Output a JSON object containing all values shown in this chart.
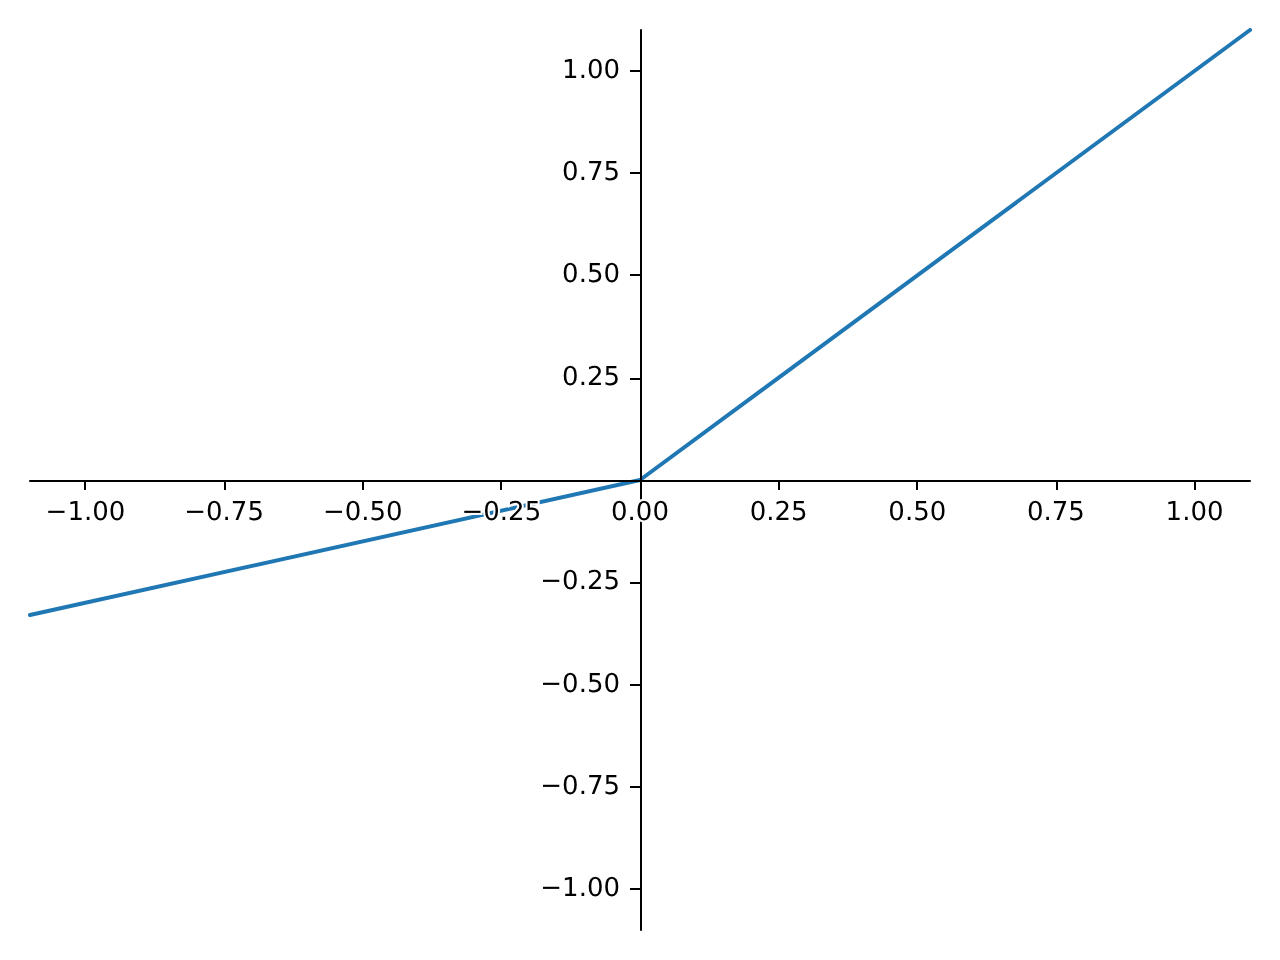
{
  "chart_data": {
    "type": "line",
    "x": [
      -1.1,
      0,
      1.1
    ],
    "values": [
      -0.33,
      0,
      1.1
    ],
    "color": "#1f77b4",
    "xlim": [
      -1.1,
      1.1
    ],
    "ylim": [
      -1.1,
      1.1
    ],
    "xticks": [
      {
        "value": -1,
        "label": "−1.00"
      },
      {
        "value": -0.75,
        "label": "−0.75"
      },
      {
        "value": -0.5,
        "label": "−0.50"
      },
      {
        "value": -0.25,
        "label": "−0.25"
      },
      {
        "value": 0,
        "label": "0.00"
      },
      {
        "value": 0.25,
        "label": "0.25"
      },
      {
        "value": 0.5,
        "label": "0.50"
      },
      {
        "value": 0.75,
        "label": "0.75"
      },
      {
        "value": 1,
        "label": "1.00"
      }
    ],
    "yticks": [
      {
        "value": -1,
        "label": "−1.00"
      },
      {
        "value": -0.75,
        "label": "−0.75"
      },
      {
        "value": -0.5,
        "label": "−0.50"
      },
      {
        "value": -0.25,
        "label": "−0.25"
      },
      {
        "value": 0.25,
        "label": "0.25"
      },
      {
        "value": 0.5,
        "label": "0.50"
      },
      {
        "value": 0.75,
        "label": "0.75"
      },
      {
        "value": 1,
        "label": "1.00"
      }
    ],
    "marker": "none",
    "line_style": "solid"
  }
}
